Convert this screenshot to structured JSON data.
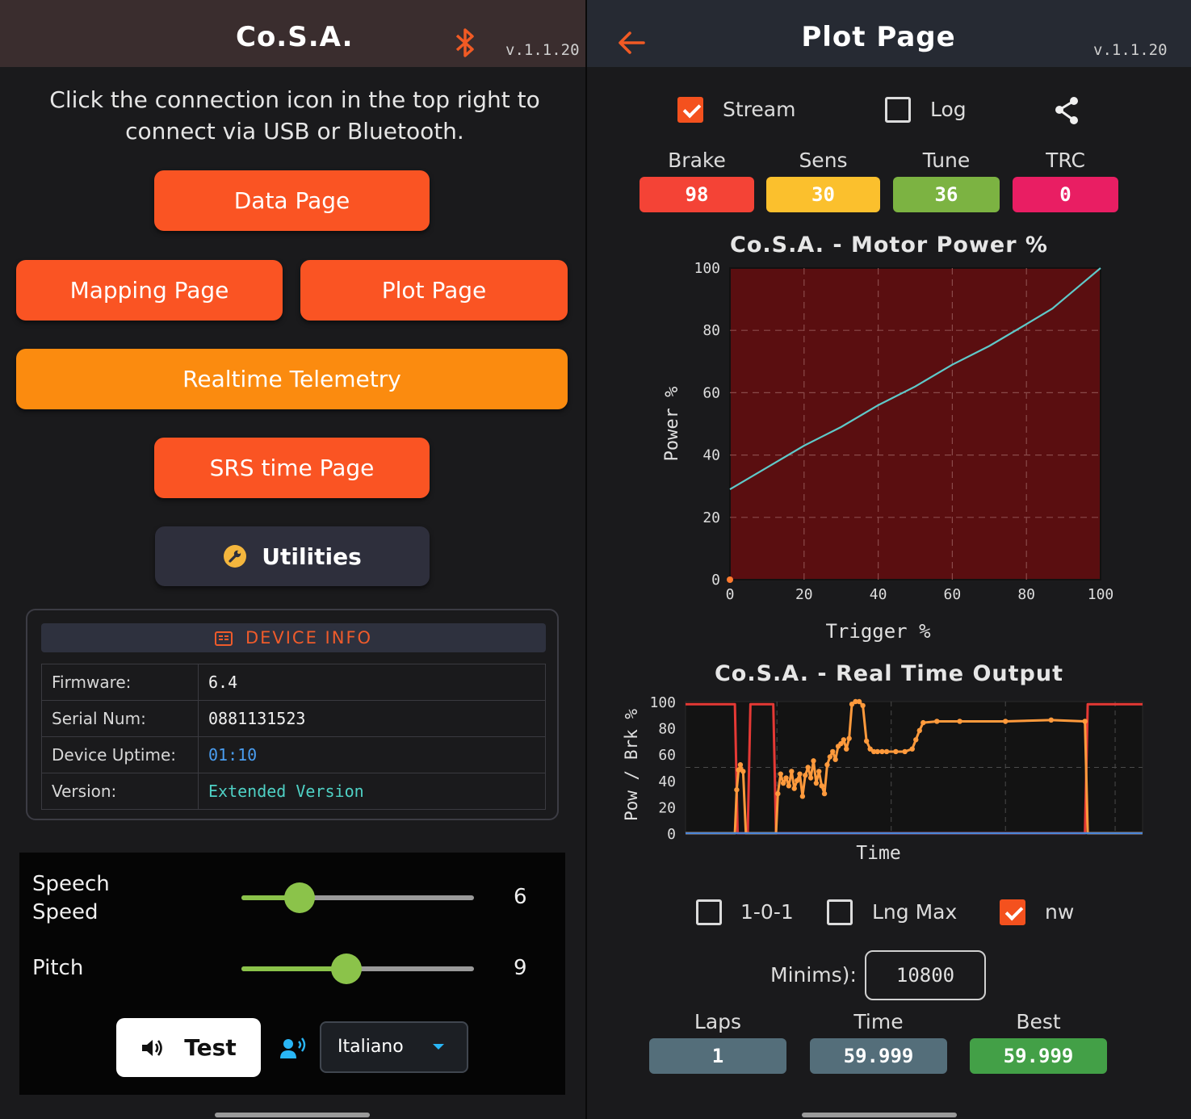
{
  "left": {
    "title": "Co.S.A.",
    "version": "v.1.1.20",
    "hint": "Click the connection icon in the top right to connect via USB or Bluetooth.",
    "buttons": {
      "data_page": "Data Page",
      "mapping_page": "Mapping Page",
      "plot_page": "Plot Page",
      "realtime": "Realtime Telemetry",
      "srs_page": "SRS time Page",
      "utilities": "Utilities"
    },
    "device_info": {
      "title": "DEVICE INFO",
      "rows": [
        {
          "key": "Firmware:",
          "value": "6.4",
          "color": "#f1f1f1"
        },
        {
          "key": "Serial Num:",
          "value": "0881131523",
          "color": "#f1f1f1"
        },
        {
          "key": "Device Uptime:",
          "value": "01:10",
          "color": "#4a9df0"
        },
        {
          "key": "Version:",
          "value": "Extended Version",
          "color": "#4fd1c5"
        }
      ]
    },
    "speech": {
      "speed_label": "Speech Speed",
      "speed_value": "6",
      "speed_fraction": 0.25,
      "pitch_label": "Pitch",
      "pitch_value": "9",
      "pitch_fraction": 0.45,
      "test_label": "Test",
      "language": "Italiano"
    }
  },
  "right": {
    "title": "Plot Page",
    "version": "v.1.1.20",
    "stream_label": "Stream",
    "stream_checked": true,
    "log_label": "Log",
    "log_checked": false,
    "tiles": [
      {
        "label": "Brake",
        "value": "98",
        "color": "#f44336"
      },
      {
        "label": "Sens",
        "value": "30",
        "color": "#fbc02d"
      },
      {
        "label": "Tune",
        "value": "36",
        "color": "#7cb342"
      },
      {
        "label": "TRC",
        "value": "0",
        "color": "#e91e63"
      }
    ],
    "options": [
      {
        "label": "1-0-1",
        "checked": false
      },
      {
        "label": "Lng Max",
        "checked": false
      },
      {
        "label": "nw",
        "checked": true
      }
    ],
    "minims_label": "Minims):",
    "minims_value": "10800",
    "stats": [
      {
        "label": "Laps",
        "value": "1",
        "color": "#546e7a"
      },
      {
        "label": "Time",
        "value": "59.999",
        "color": "#546e7a"
      },
      {
        "label": "Best",
        "value": "59.999",
        "color": "#43a047"
      }
    ]
  },
  "chart_data": [
    {
      "type": "line",
      "title": "Co.S.A. - Motor Power %",
      "xlabel": "Trigger %",
      "ylabel": "Power %",
      "xlim": [
        0,
        100
      ],
      "ylim": [
        0,
        100
      ],
      "xticks": [
        "0",
        "20",
        "40",
        "60",
        "80",
        "100"
      ],
      "yticks": [
        "0",
        "20",
        "40",
        "60",
        "80",
        "100"
      ],
      "grid": true,
      "background": "#5a0e10",
      "line_color": "#5fc9c9",
      "x": [
        0,
        10,
        20,
        30,
        40,
        50,
        60,
        70,
        80,
        87,
        95,
        100
      ],
      "y": [
        29,
        36,
        43,
        49,
        56,
        62,
        69,
        75,
        82,
        87,
        95,
        100
      ]
    },
    {
      "type": "line",
      "title": "Co.S.A. - Real Time Output",
      "xlabel": "Time",
      "ylabel": "Pow / Brk %",
      "ylim": [
        0,
        100
      ],
      "yticks": [
        "0",
        "20",
        "40",
        "60",
        "80",
        "100"
      ],
      "xlim": [
        0,
        100
      ],
      "grid": true,
      "series": [
        {
          "color": "#e53935",
          "x": [
            0,
            10.8,
            11.4,
            13.6,
            14.2,
            19.2,
            19.8,
            87.4,
            88,
            100
          ],
          "y": [
            98,
            98,
            0,
            0,
            98,
            98,
            0,
            0,
            98,
            98
          ]
        },
        {
          "color": "#ff9a3c",
          "x": [
            0,
            10.8,
            11.2,
            11.6,
            12,
            12.6,
            13.2,
            13.6,
            19.8,
            20.2,
            20.8,
            21.4,
            22,
            22.6,
            23.2,
            23.8,
            24.4,
            25,
            25.6,
            26.2,
            26.8,
            27.4,
            28,
            28.6,
            29.2,
            29.8,
            30.4,
            31,
            31.6,
            32.2,
            32.8,
            33.4,
            34,
            34.6,
            35.2,
            35.8,
            36.4,
            37.2,
            38,
            38.8,
            39.6,
            40.4,
            41.2,
            42,
            43,
            44,
            46,
            48,
            49.6,
            50.4,
            51.2,
            52,
            55,
            60,
            70,
            80,
            87.4,
            88,
            100
          ],
          "y": [
            0,
            0,
            33,
            48,
            52,
            47,
            0,
            0,
            0,
            30,
            45,
            38,
            42,
            36,
            47,
            34,
            40,
            45,
            28,
            44,
            50,
            42,
            55,
            38,
            47,
            36,
            30,
            52,
            58,
            62,
            56,
            66,
            68,
            71,
            64,
            72,
            98,
            100,
            100,
            97,
            70,
            64,
            62,
            62,
            62,
            62,
            62,
            62,
            64,
            71,
            78,
            84,
            85,
            85,
            85,
            86,
            85,
            0,
            0
          ]
        },
        {
          "color": "#4a86d8",
          "x": [
            0,
            100
          ],
          "y": [
            0,
            0
          ]
        }
      ]
    }
  ]
}
